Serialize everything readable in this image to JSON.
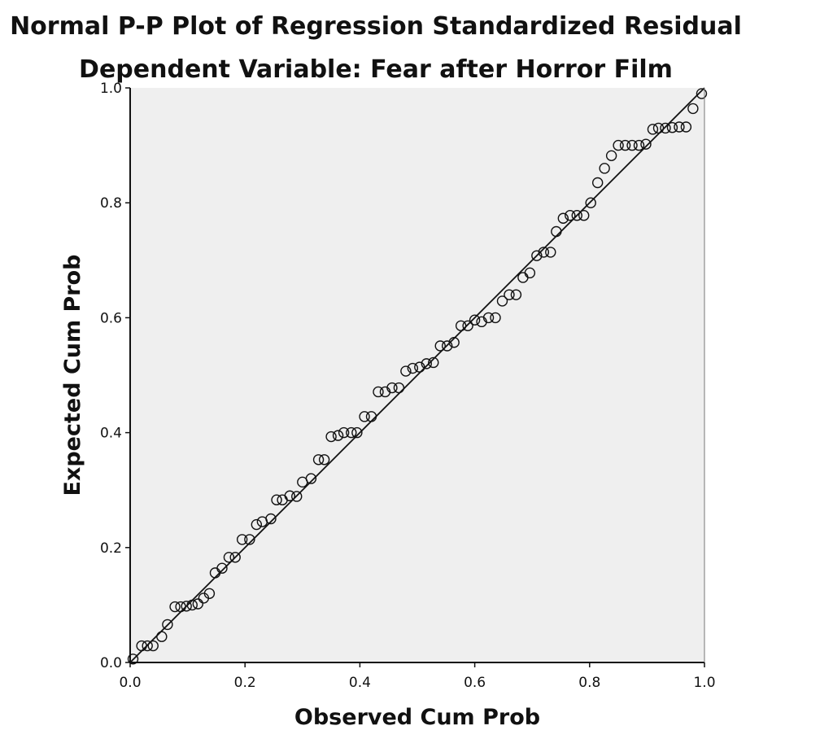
{
  "chart_data": {
    "type": "scatter",
    "title": "Normal P-P Plot of Regression Standardized Residual",
    "subtitle": "Dependent Variable: Fear after Horror Film",
    "xlabel": "Observed Cum Prob",
    "ylabel": "Expected Cum Prob",
    "xlim": [
      0,
      1
    ],
    "ylim": [
      0,
      1
    ],
    "xticks": [
      "0.0",
      "0.2",
      "0.4",
      "0.6",
      "0.8",
      "1.0"
    ],
    "yticks": [
      "0.0",
      "0.2",
      "0.4",
      "0.6",
      "0.8",
      "1.0"
    ],
    "grid": false,
    "reference_line": {
      "from": [
        0,
        0
      ],
      "to": [
        1,
        1
      ]
    },
    "colors": {
      "plot_background": "#efefef",
      "marker_stroke": "#111111",
      "line": "#111111"
    },
    "points": [
      [
        0.005,
        0.006
      ],
      [
        0.02,
        0.029
      ],
      [
        0.03,
        0.029
      ],
      [
        0.04,
        0.029
      ],
      [
        0.055,
        0.045
      ],
      [
        0.065,
        0.066
      ],
      [
        0.078,
        0.097
      ],
      [
        0.088,
        0.097
      ],
      [
        0.098,
        0.098
      ],
      [
        0.108,
        0.1
      ],
      [
        0.118,
        0.102
      ],
      [
        0.128,
        0.112
      ],
      [
        0.138,
        0.12
      ],
      [
        0.148,
        0.156
      ],
      [
        0.16,
        0.164
      ],
      [
        0.172,
        0.183
      ],
      [
        0.183,
        0.183
      ],
      [
        0.195,
        0.214
      ],
      [
        0.208,
        0.214
      ],
      [
        0.22,
        0.24
      ],
      [
        0.23,
        0.245
      ],
      [
        0.245,
        0.25
      ],
      [
        0.255,
        0.283
      ],
      [
        0.265,
        0.283
      ],
      [
        0.278,
        0.29
      ],
      [
        0.29,
        0.289
      ],
      [
        0.3,
        0.314
      ],
      [
        0.315,
        0.32
      ],
      [
        0.328,
        0.353
      ],
      [
        0.338,
        0.353
      ],
      [
        0.35,
        0.393
      ],
      [
        0.362,
        0.395
      ],
      [
        0.372,
        0.4
      ],
      [
        0.385,
        0.4
      ],
      [
        0.395,
        0.4
      ],
      [
        0.408,
        0.428
      ],
      [
        0.42,
        0.428
      ],
      [
        0.432,
        0.471
      ],
      [
        0.444,
        0.471
      ],
      [
        0.456,
        0.478
      ],
      [
        0.468,
        0.478
      ],
      [
        0.48,
        0.507
      ],
      [
        0.492,
        0.512
      ],
      [
        0.504,
        0.514
      ],
      [
        0.516,
        0.52
      ],
      [
        0.528,
        0.522
      ],
      [
        0.54,
        0.551
      ],
      [
        0.552,
        0.551
      ],
      [
        0.564,
        0.557
      ],
      [
        0.576,
        0.586
      ],
      [
        0.588,
        0.586
      ],
      [
        0.6,
        0.596
      ],
      [
        0.612,
        0.593
      ],
      [
        0.624,
        0.6
      ],
      [
        0.636,
        0.6
      ],
      [
        0.648,
        0.629
      ],
      [
        0.66,
        0.64
      ],
      [
        0.672,
        0.64
      ],
      [
        0.684,
        0.67
      ],
      [
        0.696,
        0.678
      ],
      [
        0.708,
        0.708
      ],
      [
        0.72,
        0.714
      ],
      [
        0.732,
        0.714
      ],
      [
        0.742,
        0.75
      ],
      [
        0.754,
        0.773
      ],
      [
        0.766,
        0.778
      ],
      [
        0.778,
        0.778
      ],
      [
        0.79,
        0.778
      ],
      [
        0.802,
        0.8
      ],
      [
        0.814,
        0.835
      ],
      [
        0.826,
        0.86
      ],
      [
        0.838,
        0.882
      ],
      [
        0.85,
        0.9
      ],
      [
        0.862,
        0.9
      ],
      [
        0.874,
        0.9
      ],
      [
        0.886,
        0.9
      ],
      [
        0.898,
        0.902
      ],
      [
        0.91,
        0.928
      ],
      [
        0.92,
        0.93
      ],
      [
        0.932,
        0.93
      ],
      [
        0.944,
        0.931
      ],
      [
        0.956,
        0.932
      ],
      [
        0.968,
        0.932
      ],
      [
        0.98,
        0.964
      ],
      [
        0.995,
        0.99
      ]
    ]
  }
}
